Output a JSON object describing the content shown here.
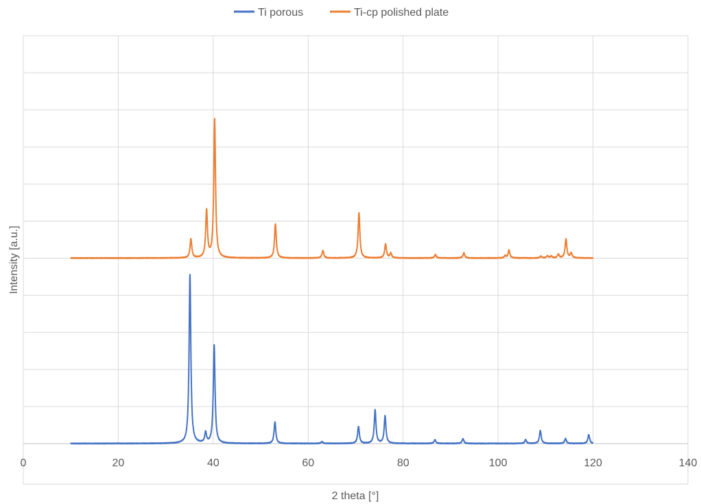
{
  "chart_data": {
    "type": "line",
    "title": "",
    "xlabel": "2 theta [°]",
    "ylabel": "Intensity [a.u.]",
    "xlim": [
      0,
      140
    ],
    "ylim": [
      0,
      110
    ],
    "xticks": [
      0,
      20,
      40,
      60,
      80,
      100,
      120,
      140
    ],
    "y_gridlines": [
      0,
      10,
      20,
      30,
      40,
      50,
      60,
      70,
      80,
      90,
      100,
      110
    ],
    "y_tick_labels_shown": false,
    "grid": true,
    "legend_position": "top",
    "x_range": [
      10,
      120
    ],
    "series": [
      {
        "name": "Ti porous",
        "color": "#4472C4",
        "baseline": 0,
        "peaks": [
          {
            "x": 35.1,
            "height": 45.5
          },
          {
            "x": 38.4,
            "height": 2.8
          },
          {
            "x": 40.2,
            "height": 26.5
          },
          {
            "x": 53.0,
            "height": 5.8
          },
          {
            "x": 62.9,
            "height": 0.5
          },
          {
            "x": 70.6,
            "height": 4.6
          },
          {
            "x": 74.1,
            "height": 9.0
          },
          {
            "x": 76.2,
            "height": 7.4
          },
          {
            "x": 86.7,
            "height": 1.0
          },
          {
            "x": 92.6,
            "height": 1.3
          },
          {
            "x": 105.8,
            "height": 1.0
          },
          {
            "x": 108.9,
            "height": 3.5
          },
          {
            "x": 114.2,
            "height": 1.3
          },
          {
            "x": 119.1,
            "height": 2.4
          }
        ]
      },
      {
        "name": "Ti-cp polished plate",
        "color": "#ED7D31",
        "baseline": 50,
        "peaks": [
          {
            "x": 35.3,
            "height": 5.1
          },
          {
            "x": 38.6,
            "height": 12.7
          },
          {
            "x": 40.3,
            "height": 37.3
          },
          {
            "x": 53.1,
            "height": 9.2
          },
          {
            "x": 63.1,
            "height": 2.0
          },
          {
            "x": 70.7,
            "height": 12.2
          },
          {
            "x": 76.3,
            "height": 3.8
          },
          {
            "x": 77.4,
            "height": 1.3
          },
          {
            "x": 86.8,
            "height": 0.9
          },
          {
            "x": 92.8,
            "height": 1.4
          },
          {
            "x": 101.5,
            "height": 0.6
          },
          {
            "x": 102.3,
            "height": 2.1
          },
          {
            "x": 109.0,
            "height": 0.5
          },
          {
            "x": 110.4,
            "height": 0.6
          },
          {
            "x": 111.2,
            "height": 0.5
          },
          {
            "x": 112.7,
            "height": 1.0
          },
          {
            "x": 114.3,
            "height": 5.1
          },
          {
            "x": 115.4,
            "height": 1.3
          }
        ]
      }
    ]
  }
}
